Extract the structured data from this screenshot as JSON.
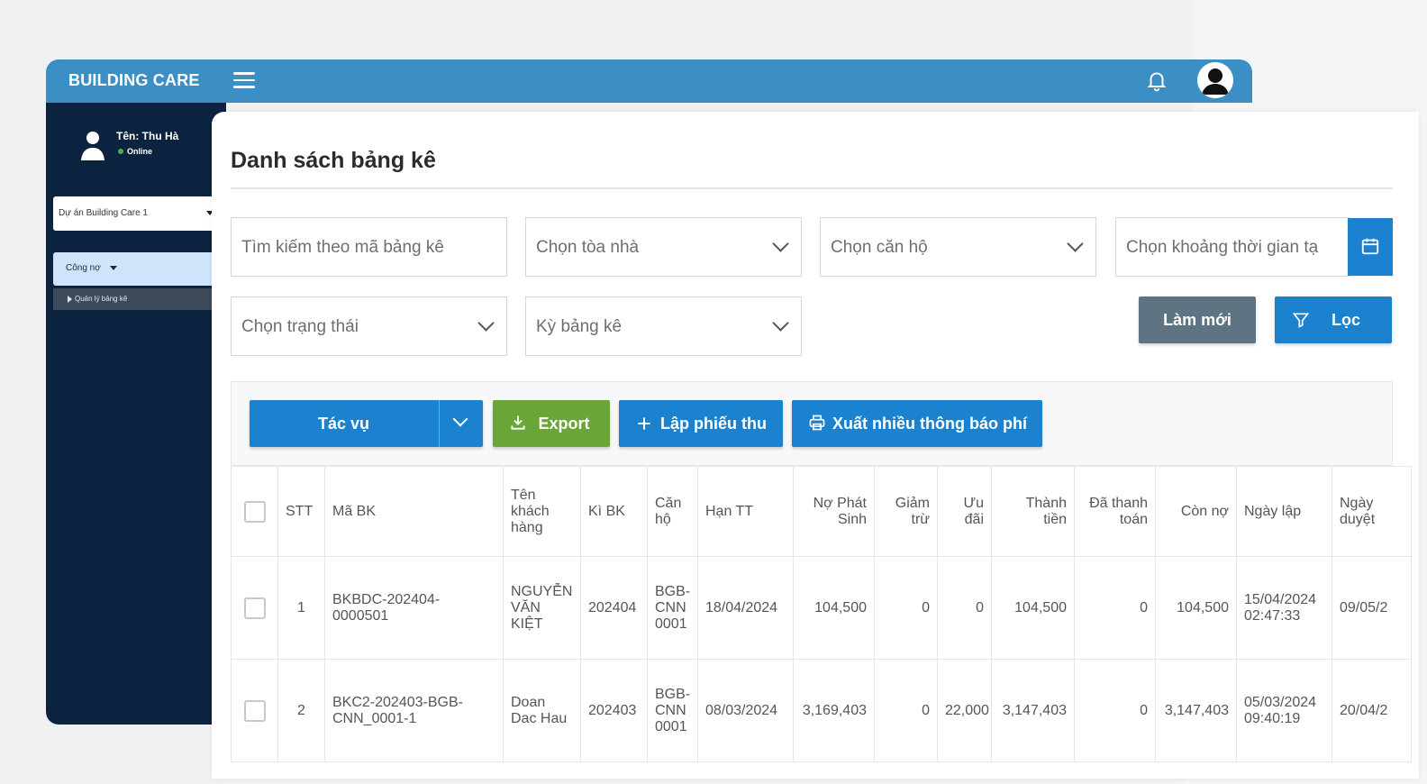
{
  "app": {
    "brand": "BUILDING CARE"
  },
  "user": {
    "name": "Tên: Thu Hà",
    "status": "Online"
  },
  "sidebar": {
    "project": "Dự án Building Care 1",
    "menu": "Công nợ",
    "submenu": "Quản lý bảng kê"
  },
  "page": {
    "title": "Danh sách bảng kê"
  },
  "filters": {
    "search_placeholder": "Tìm kiếm theo mã bảng kê",
    "building": "Chọn tòa nhà",
    "apartment": "Chọn căn hộ",
    "date_range": "Chọn khoảng thời gian tạ",
    "status": "Chọn trạng thái",
    "period": "Kỳ bảng kê",
    "reset_label": "Làm mới",
    "filter_label": "Lọc"
  },
  "toolbar": {
    "actions_label": "Tác vụ",
    "export_label": "Export",
    "receipt_label": "Lập phiếu thu",
    "notices_label": "Xuất nhiều thông báo phí"
  },
  "table": {
    "headers": [
      "STT",
      "Mã BK",
      "Tên khách hàng",
      "Kì BK",
      "Căn hộ",
      "Hạn TT",
      "Nợ Phát Sinh",
      "Giảm trừ",
      "Ưu đãi",
      "Thành tiền",
      "Đã thanh toán",
      "Còn nợ",
      "Ngày lập",
      "Ngày duyệt"
    ],
    "rows": [
      [
        "1",
        "BKBDC-202404-0000501",
        "NGUYỄN VĂN KIỆT",
        "202404",
        "BGB-CNN 0001",
        "18/04/2024",
        "104,500",
        "0",
        "0",
        "104,500",
        "0",
        "104,500",
        "15/04/2024 02:47:33",
        "09/05/2"
      ],
      [
        "2",
        "BKC2-202403-BGB-CNN_0001-1",
        "Doan Dac Hau",
        "202403",
        "BGB-CNN 0001",
        "08/03/2024",
        "3,169,403",
        "0",
        "22,000",
        "3,147,403",
        "0",
        "3,147,403",
        "05/03/2024 09:40:19",
        "20/04/2"
      ]
    ]
  },
  "colors": {
    "topbar": "#3b8fc4",
    "sidebar": "#0c2340",
    "primary": "#1a82cf",
    "export": "#6aa538",
    "reset": "#5f7482"
  }
}
